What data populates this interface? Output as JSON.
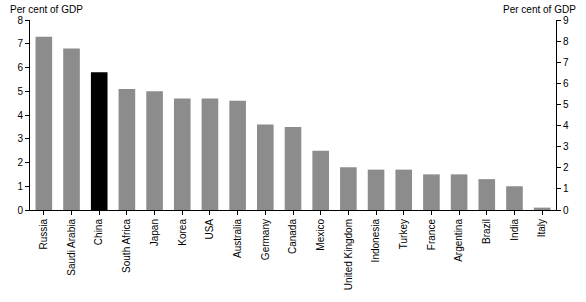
{
  "chart_data": {
    "type": "bar",
    "ylabel": "Per cent of GDP",
    "y2label": "Per cent of GDP",
    "categories": [
      "Russia",
      "Saudi Arabia",
      "China",
      "South Africa",
      "Japan",
      "Korea",
      "USA",
      "Australia",
      "Germany",
      "Canada",
      "Mexico",
      "United Kingdom",
      "Indonesia",
      "Turkey",
      "France",
      "Argentina",
      "Brazil",
      "India",
      "Italy"
    ],
    "values": [
      7.3,
      6.8,
      5.8,
      5.1,
      5.0,
      4.7,
      4.7,
      4.6,
      3.6,
      3.5,
      2.5,
      1.8,
      1.7,
      1.7,
      1.5,
      1.5,
      1.3,
      1.0,
      0.1
    ],
    "colors": [
      "#8c8c8c",
      "#8c8c8c",
      "#000000",
      "#8c8c8c",
      "#8c8c8c",
      "#8c8c8c",
      "#8c8c8c",
      "#8c8c8c",
      "#8c8c8c",
      "#8c8c8c",
      "#8c8c8c",
      "#8c8c8c",
      "#8c8c8c",
      "#8c8c8c",
      "#8c8c8c",
      "#8c8c8c",
      "#8c8c8c",
      "#8c8c8c",
      "#8c8c8c"
    ],
    "ylim": [
      0,
      8
    ],
    "yticks": [
      0,
      1,
      2,
      3,
      4,
      5,
      6,
      7,
      8
    ],
    "y2lim": [
      0,
      9
    ],
    "y2ticks": [
      0,
      1,
      2,
      3,
      4,
      5,
      6,
      7,
      8,
      9
    ],
    "grid": false
  }
}
